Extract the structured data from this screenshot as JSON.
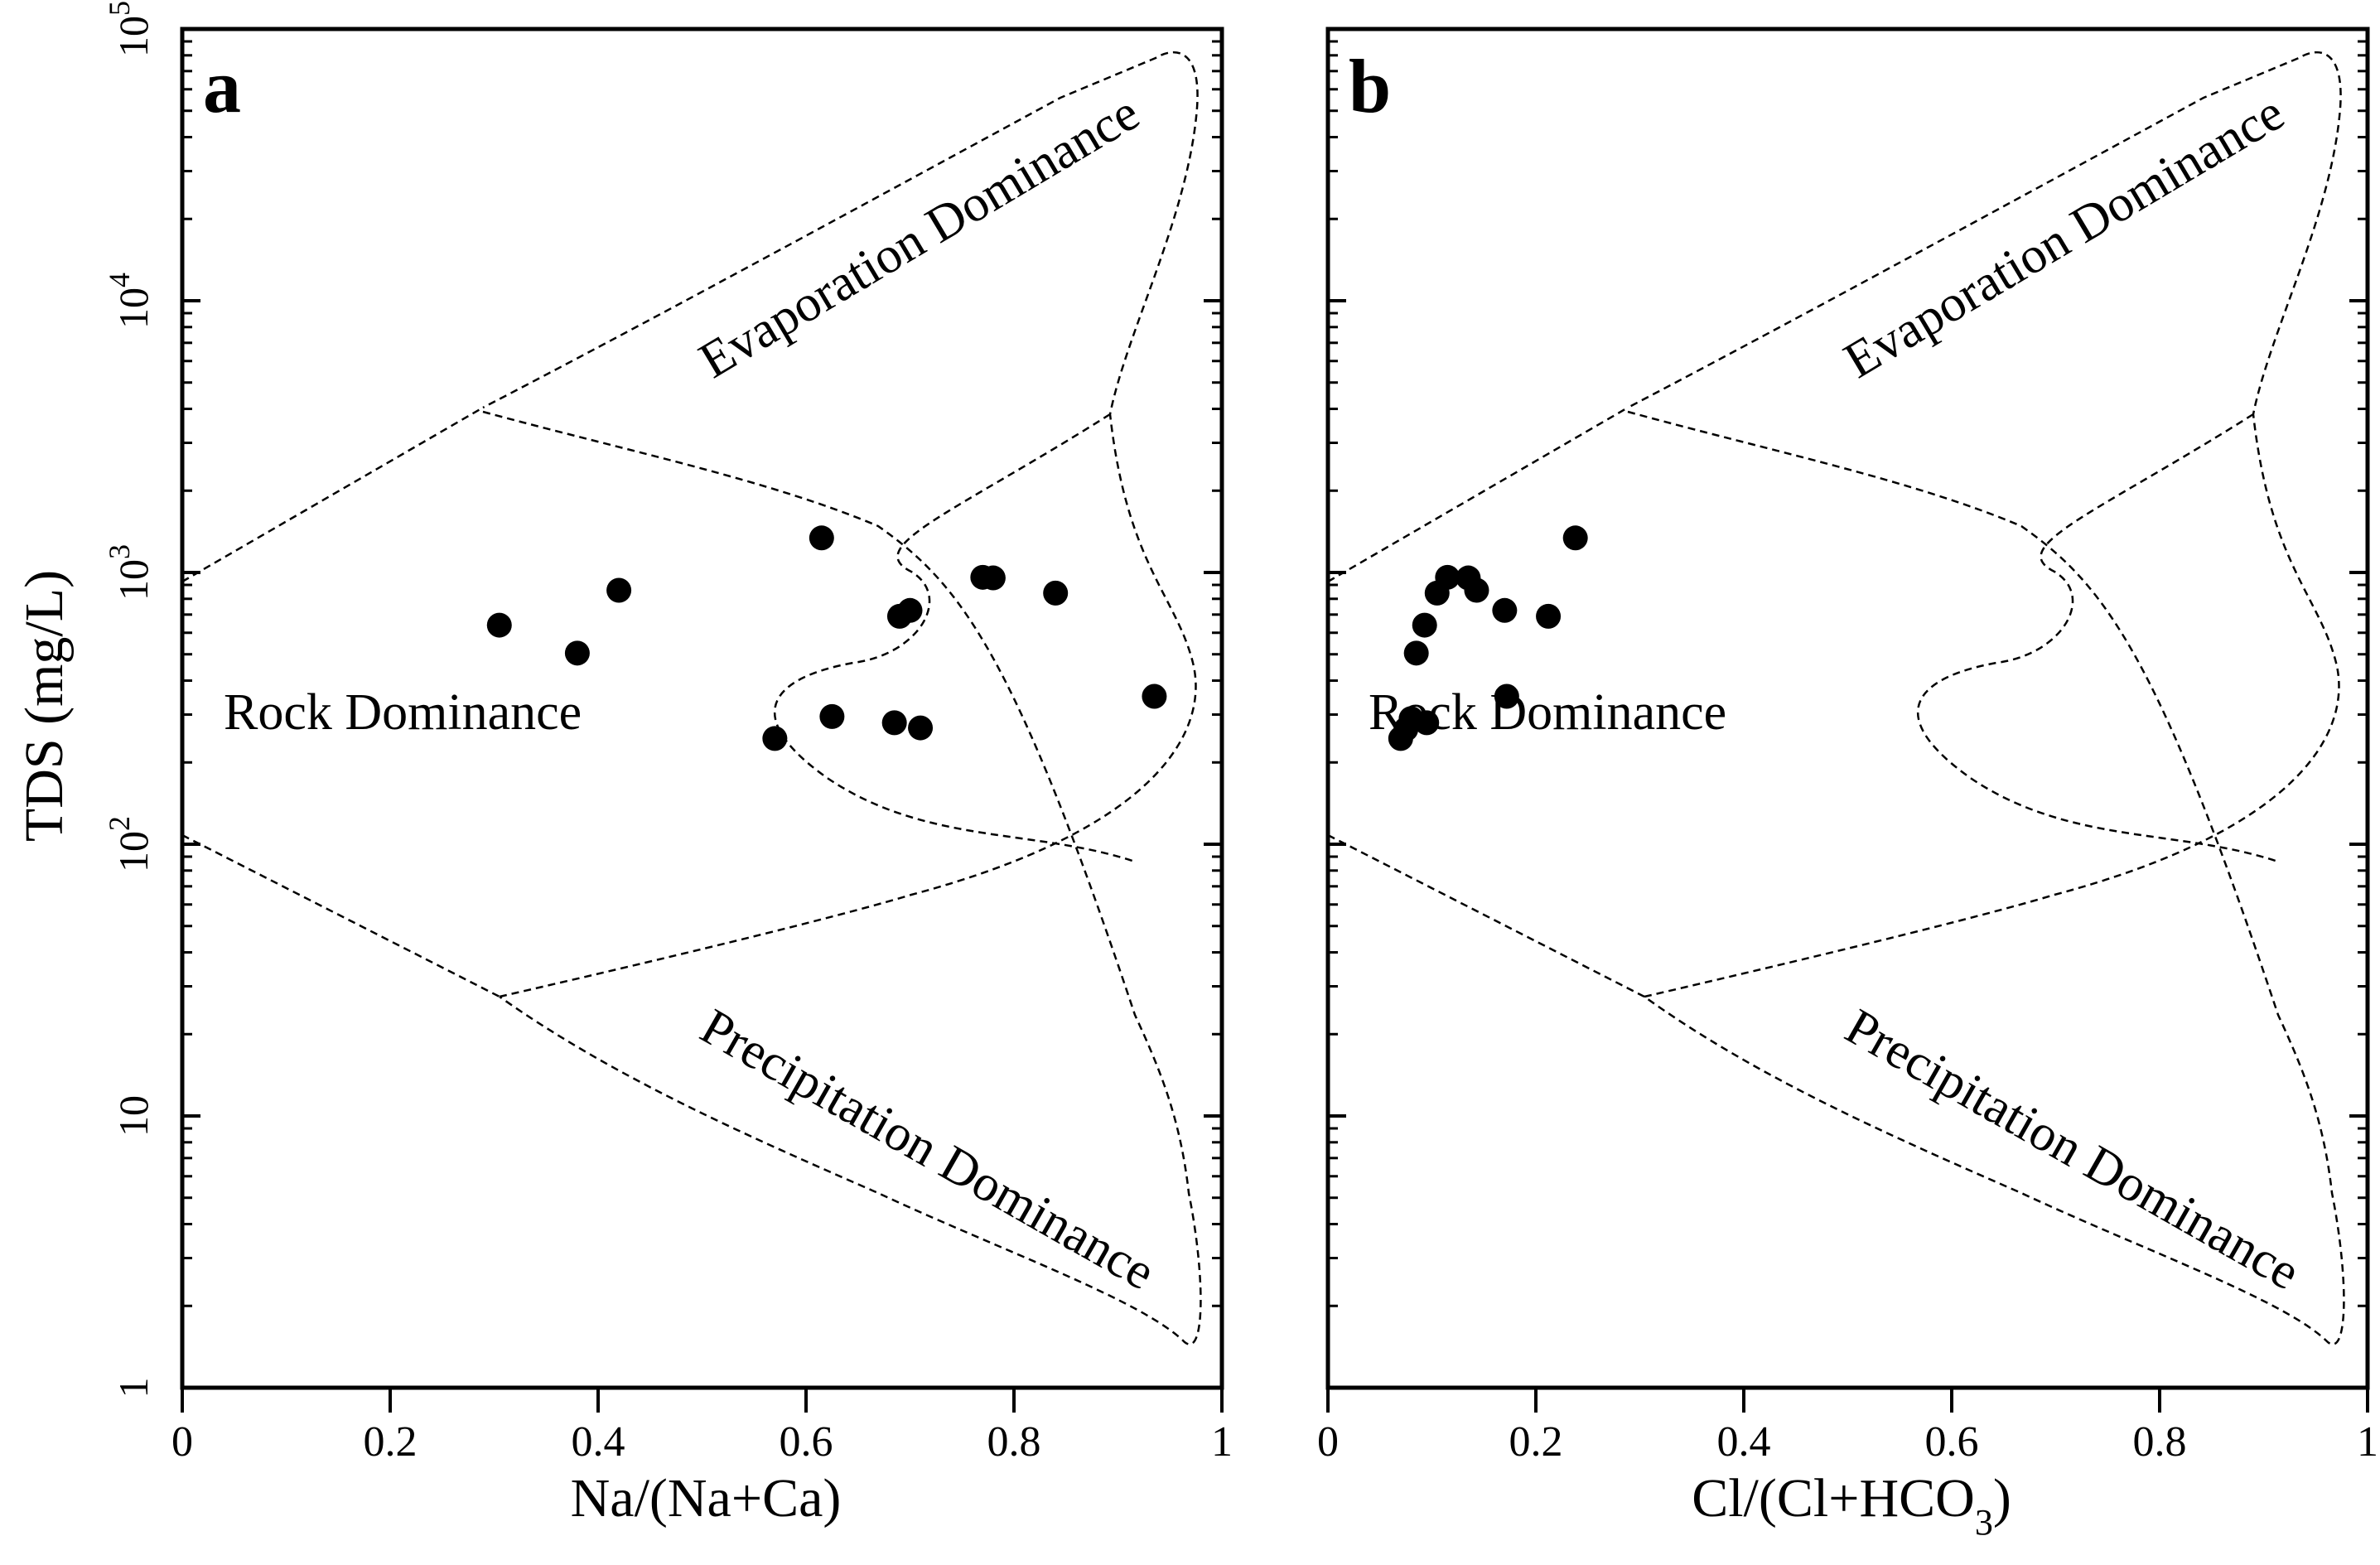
{
  "chart_data": [
    {
      "type": "scatter",
      "panel_label": "a",
      "xlabel": "Na/(Na+Ca)",
      "ylabel": "TDS (mg/L)",
      "xlim": [
        0,
        1
      ],
      "ylim": [
        1,
        100000
      ],
      "yscale": "log",
      "x_ticks": [
        "0",
        "0.2",
        "0.4",
        "0.6",
        "0.8",
        "1"
      ],
      "y_ticks": [
        {
          "base": "1",
          "exp": ""
        },
        {
          "base": "10",
          "exp": ""
        },
        {
          "base": "10",
          "exp": "2"
        },
        {
          "base": "10",
          "exp": "3"
        },
        {
          "base": "10",
          "exp": "4"
        },
        {
          "base": "10",
          "exp": "5"
        }
      ],
      "regions": [
        "Evaporation Dominance",
        "Rock Dominance",
        "Precipitation Dominance"
      ],
      "points": [
        {
          "x": 0.305,
          "y": 640
        },
        {
          "x": 0.38,
          "y": 505
        },
        {
          "x": 0.42,
          "y": 860
        },
        {
          "x": 0.615,
          "y": 1340
        },
        {
          "x": 0.57,
          "y": 245
        },
        {
          "x": 0.625,
          "y": 295
        },
        {
          "x": 0.685,
          "y": 280
        },
        {
          "x": 0.69,
          "y": 690
        },
        {
          "x": 0.7,
          "y": 725
        },
        {
          "x": 0.71,
          "y": 268
        },
        {
          "x": 0.77,
          "y": 960
        },
        {
          "x": 0.78,
          "y": 955
        },
        {
          "x": 0.84,
          "y": 840
        },
        {
          "x": 0.935,
          "y": 350
        }
      ]
    },
    {
      "type": "scatter",
      "panel_label": "b",
      "xlabel": "Cl/(Cl+HCO",
      "xlabel_sub": "3",
      "xlabel_end": ")",
      "xlim": [
        0,
        1
      ],
      "ylim": [
        1,
        100000
      ],
      "yscale": "log",
      "x_ticks": [
        "0",
        "0.2",
        "0.4",
        "0.6",
        "0.8",
        "1"
      ],
      "regions": [
        "Evaporation Dominance",
        "Rock Dominance",
        "Precipitation Dominance"
      ],
      "points": [
        {
          "x": 0.07,
          "y": 245
        },
        {
          "x": 0.075,
          "y": 265
        },
        {
          "x": 0.08,
          "y": 290
        },
        {
          "x": 0.095,
          "y": 280
        },
        {
          "x": 0.085,
          "y": 505
        },
        {
          "x": 0.093,
          "y": 640
        },
        {
          "x": 0.105,
          "y": 840
        },
        {
          "x": 0.115,
          "y": 960
        },
        {
          "x": 0.135,
          "y": 955
        },
        {
          "x": 0.143,
          "y": 860
        },
        {
          "x": 0.17,
          "y": 725
        },
        {
          "x": 0.172,
          "y": 350
        },
        {
          "x": 0.212,
          "y": 690
        },
        {
          "x": 0.238,
          "y": 1340
        }
      ]
    }
  ]
}
